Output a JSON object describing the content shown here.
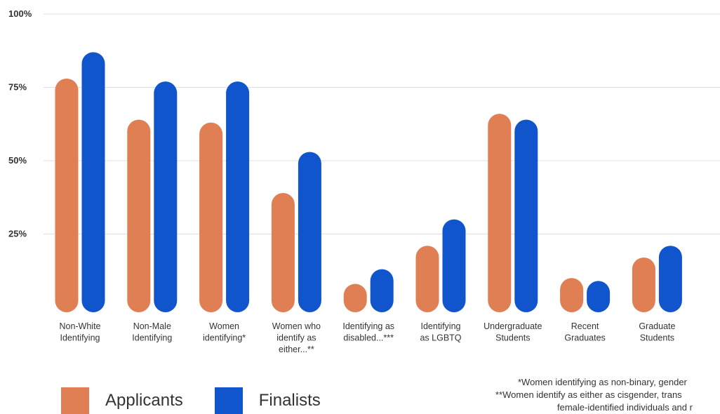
{
  "chart_data": {
    "type": "bar",
    "categories": [
      [
        "Non-White",
        "Identifying"
      ],
      [
        "Non-Male",
        "Identifying"
      ],
      [
        "Women",
        "identifying*"
      ],
      [
        "Women who",
        "identify as",
        "either...**"
      ],
      [
        "Identifying as",
        "disabled...***"
      ],
      [
        "Identifying",
        "as LGBTQ"
      ],
      [
        "Undergraduate",
        "Students"
      ],
      [
        "Recent",
        "Graduates"
      ],
      [
        "Graduate",
        "Students"
      ]
    ],
    "series": [
      {
        "name": "Applicants",
        "color": "#E07F53",
        "values": [
          78,
          64,
          63,
          39,
          8,
          21,
          66,
          10,
          17
        ]
      },
      {
        "name": "Finalists",
        "color": "#1155CC",
        "values": [
          87,
          77,
          77,
          53,
          13,
          30,
          64,
          9,
          21
        ]
      }
    ],
    "ylim": [
      0,
      100
    ],
    "yticks": [
      25,
      50,
      75,
      100
    ],
    "ytick_labels": [
      "25%",
      "50%",
      "75%",
      "100%"
    ],
    "grid": true,
    "legend_position": "bottom-left",
    "footnotes": [
      "*Women identifying as non-binary, gender",
      "**Women identify as either as cisgender, trans",
      "female-identified individuals and r"
    ]
  }
}
